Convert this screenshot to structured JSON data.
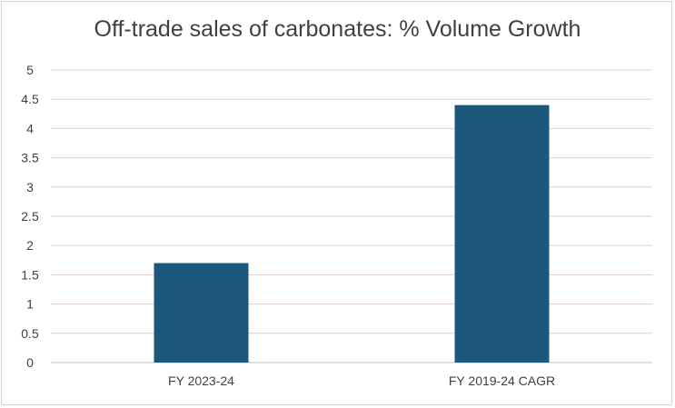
{
  "chart_data": {
    "type": "bar",
    "title": "Off-trade sales of carbonates: % Volume Growth",
    "categories": [
      "FY 2023-24",
      "FY 2019-24 CAGR"
    ],
    "values": [
      1.7,
      4.4
    ],
    "ylim": [
      0,
      5
    ],
    "yticks": [
      "0",
      "0.5",
      "1",
      "1.5",
      "2",
      "2.5",
      "3",
      "3.5",
      "4",
      "4.5",
      "5"
    ],
    "ytick_values": [
      0,
      0.5,
      1,
      1.5,
      2,
      2.5,
      3,
      3.5,
      4,
      4.5,
      5
    ],
    "grid": true,
    "bar_color": "#1b587c",
    "grid_color": "#e3cfcf",
    "axis_color": "#bfbfbf"
  }
}
